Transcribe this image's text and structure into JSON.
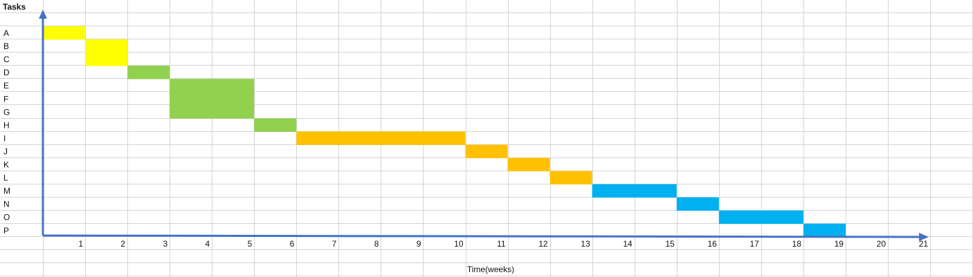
{
  "chart_data": {
    "type": "bar",
    "subtype": "gantt",
    "y_title": "Tasks",
    "x_title": "Time(weeks)",
    "x_ticks": [
      1,
      2,
      3,
      4,
      5,
      6,
      7,
      8,
      9,
      10,
      11,
      12,
      13,
      14,
      15,
      16,
      17,
      18,
      19,
      20,
      21
    ],
    "tasks": [
      {
        "name": "A",
        "start": 0,
        "end": 1,
        "color": "#FFFF00"
      },
      {
        "name": "B",
        "start": 1,
        "end": 2,
        "color": "#FFFF00"
      },
      {
        "name": "C",
        "start": 1,
        "end": 2,
        "color": "#FFFF00"
      },
      {
        "name": "D",
        "start": 2,
        "end": 3,
        "color": "#92D050"
      },
      {
        "name": "E",
        "start": 3,
        "end": 5,
        "color": "#92D050"
      },
      {
        "name": "F",
        "start": 3,
        "end": 5,
        "color": "#92D050"
      },
      {
        "name": "G",
        "start": 3,
        "end": 5,
        "color": "#92D050"
      },
      {
        "name": "H",
        "start": 5,
        "end": 6,
        "color": "#92D050"
      },
      {
        "name": "I",
        "start": 6,
        "end": 10,
        "color": "#FFC000"
      },
      {
        "name": "J",
        "start": 10,
        "end": 11,
        "color": "#FFC000"
      },
      {
        "name": "K",
        "start": 11,
        "end": 12,
        "color": "#FFC000"
      },
      {
        "name": "L",
        "start": 12,
        "end": 13,
        "color": "#FFC000"
      },
      {
        "name": "M",
        "start": 13,
        "end": 15,
        "color": "#00B0F0"
      },
      {
        "name": "N",
        "start": 15,
        "end": 16,
        "color": "#00B0F0"
      },
      {
        "name": "O",
        "start": 16,
        "end": 18,
        "color": "#00B0F0"
      },
      {
        "name": "P",
        "start": 18,
        "end": 19,
        "color": "#00B0F0"
      }
    ],
    "grid": true,
    "axis_color": "#4472C4",
    "grid_color": "#D4D4D4"
  }
}
